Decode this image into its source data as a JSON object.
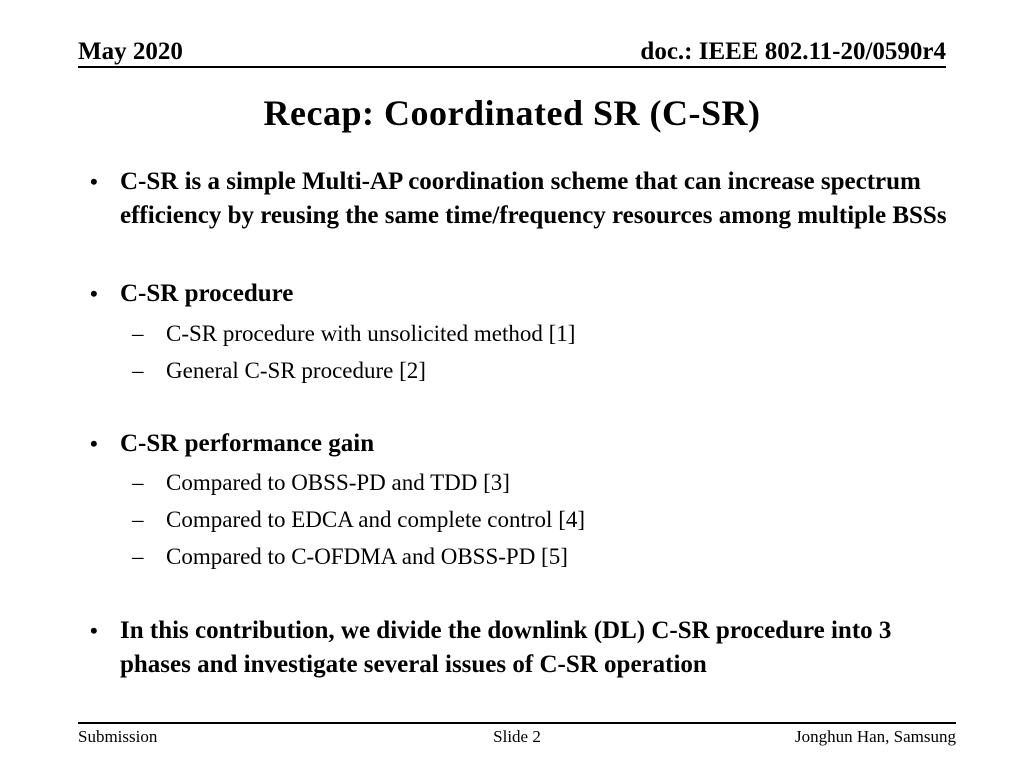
{
  "header": {
    "date": "May 2020",
    "doc": "doc.: IEEE 802.11-20/0590r4"
  },
  "title": "Recap: Coordinated SR (C-SR)",
  "bullet_glyphs": {
    "level1": "•",
    "level2": "–"
  },
  "bullets": [
    {
      "text": "C-SR is a simple Multi-AP coordination scheme that can increase spectrum efficiency by reusing the same time/frequency resources among multiple BSSs",
      "children": []
    },
    {
      "text": "C-SR procedure",
      "children": [
        "C-SR procedure with unsolicited method [1]",
        "General C-SR procedure [2]"
      ]
    },
    {
      "text": "C-SR performance gain",
      "children": [
        "Compared to OBSS-PD and TDD [3]",
        "Compared to EDCA and complete control [4]",
        "Compared to C-OFDMA and OBSS-PD [5]"
      ]
    },
    {
      "text": "In this contribution, we divide the downlink (DL) C-SR procedure into 3 phases and investigate several issues of C-SR operation",
      "children": []
    }
  ],
  "footer": {
    "left": "Submission",
    "center": "Slide 2",
    "right": "Jonghun Han, Samsung"
  },
  "colors": {
    "text": "#000000",
    "background": "#ffffff"
  }
}
